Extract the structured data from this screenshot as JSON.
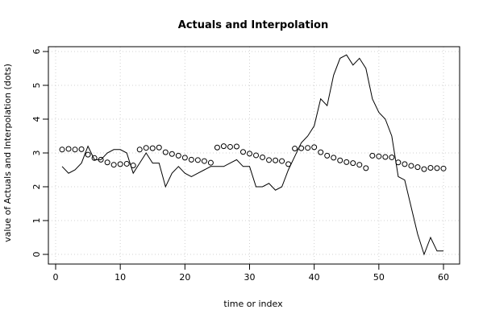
{
  "chart_data": {
    "type": "line",
    "title": "Actuals and Interpolation",
    "xlabel": "time or index",
    "ylabel": "value of Actuals and Interpolation (dots)",
    "xlim": [
      0,
      60
    ],
    "ylim": [
      0,
      6
    ],
    "x_ticks": [
      0,
      10,
      20,
      30,
      40,
      50,
      60
    ],
    "y_ticks": [
      0,
      1,
      2,
      3,
      4,
      5,
      6
    ],
    "grid": true,
    "x": [
      1,
      2,
      3,
      4,
      5,
      6,
      7,
      8,
      9,
      10,
      11,
      12,
      13,
      14,
      15,
      16,
      17,
      18,
      19,
      20,
      21,
      22,
      23,
      24,
      25,
      26,
      27,
      28,
      29,
      30,
      31,
      32,
      33,
      34,
      35,
      36,
      37,
      38,
      39,
      40,
      41,
      42,
      43,
      44,
      45,
      46,
      47,
      48,
      49,
      50,
      51,
      52,
      53,
      54,
      55,
      56,
      57,
      58,
      59,
      60
    ],
    "series": [
      {
        "style": "line",
        "values": [
          2.6,
          2.4,
          2.5,
          2.7,
          3.2,
          2.8,
          2.8,
          3.0,
          3.1,
          3.1,
          3.0,
          2.4,
          2.7,
          3.0,
          2.7,
          2.7,
          2.0,
          2.4,
          2.6,
          2.4,
          2.3,
          2.4,
          2.5,
          2.6,
          2.6,
          2.6,
          2.7,
          2.8,
          2.6,
          2.6,
          2.0,
          2.0,
          2.1,
          1.9,
          2.0,
          2.5,
          2.9,
          3.3,
          3.5,
          3.8,
          4.6,
          4.4,
          5.3,
          5.8,
          5.9,
          5.6,
          5.8,
          5.5,
          4.6,
          4.2,
          4.0,
          3.5,
          2.3,
          2.2,
          1.4,
          0.6,
          0.0,
          0.5,
          0.1,
          0.1
        ]
      },
      {
        "style": "dots",
        "values": [
          3.1,
          3.12,
          3.1,
          3.11,
          2.95,
          2.85,
          2.8,
          2.72,
          2.65,
          2.67,
          2.68,
          2.63,
          3.1,
          3.15,
          3.14,
          3.16,
          3.02,
          2.97,
          2.92,
          2.86,
          2.8,
          2.79,
          2.76,
          2.71,
          3.16,
          3.2,
          3.18,
          3.19,
          3.03,
          2.98,
          2.93,
          2.87,
          2.79,
          2.78,
          2.76,
          2.67,
          3.13,
          3.14,
          3.15,
          3.17,
          3.02,
          2.92,
          2.86,
          2.78,
          2.73,
          2.7,
          2.65,
          2.55,
          2.92,
          2.9,
          2.88,
          2.87,
          2.72,
          2.67,
          2.62,
          2.58,
          2.52,
          2.56,
          2.55,
          2.54
        ]
      }
    ]
  }
}
